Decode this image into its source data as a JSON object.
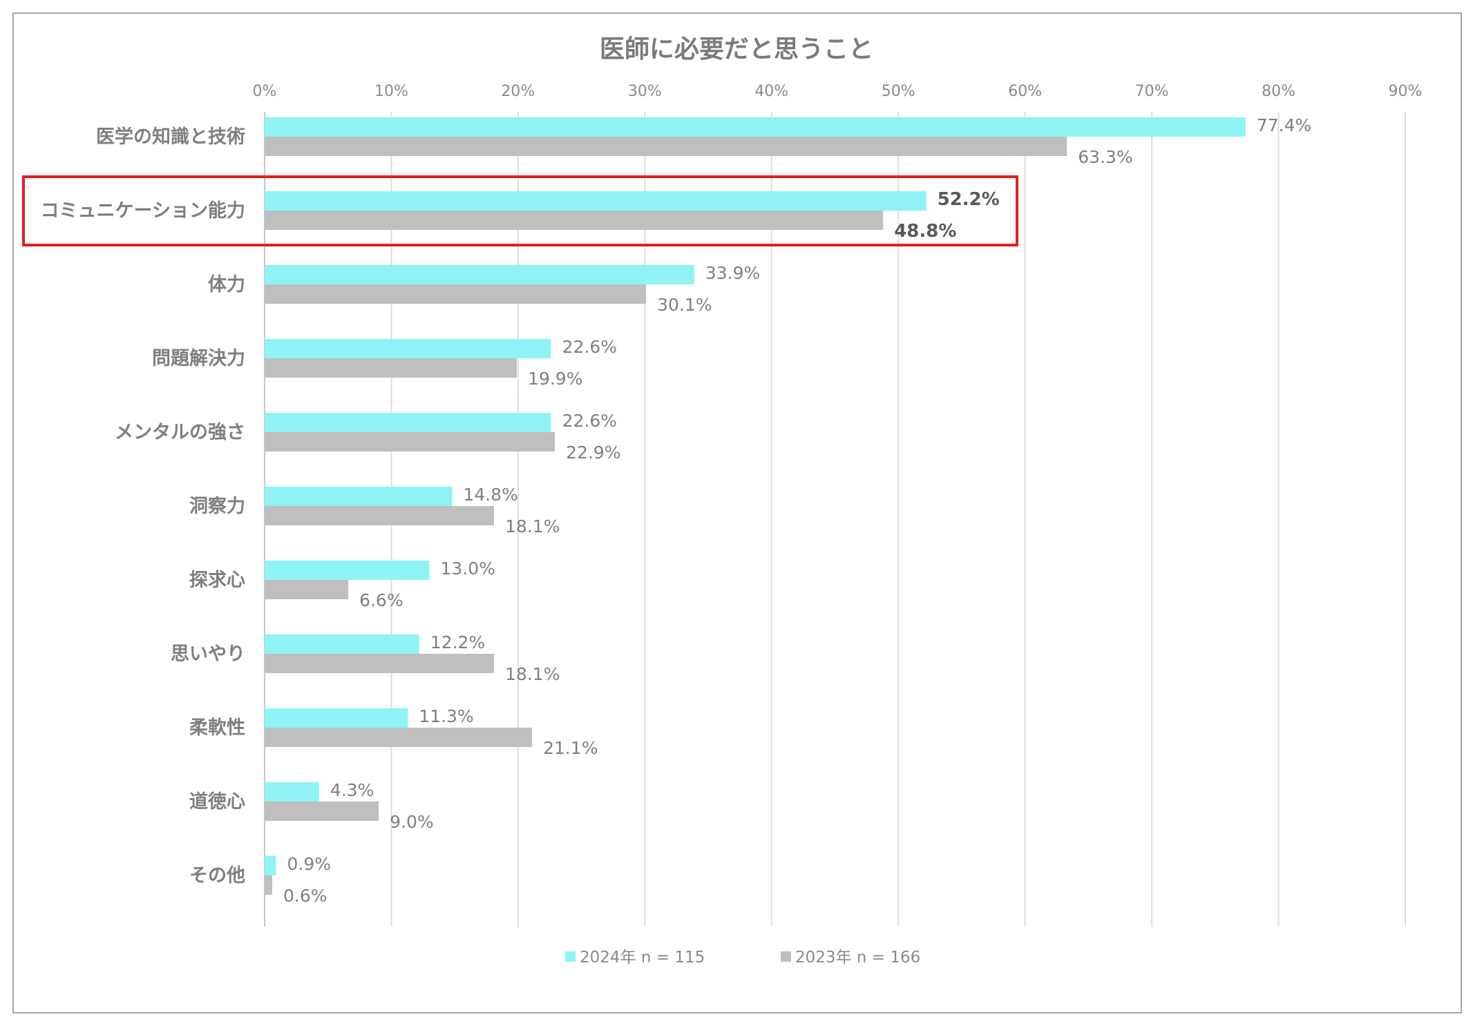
{
  "chart_data": {
    "type": "bar",
    "orientation": "horizontal",
    "title": "医師に必要だと思うこと",
    "xlabel": "",
    "ylabel": "",
    "xlim": [
      0,
      90
    ],
    "tick_labels": [
      "0%",
      "10%",
      "20%",
      "30%",
      "40%",
      "50%",
      "60%",
      "70%",
      "80%",
      "90%"
    ],
    "grid": true,
    "legend_position": "bottom",
    "categories": [
      "医学の知識と技術",
      "コミュニケーション能力",
      "体力",
      "問題解決力",
      "メンタルの強さ",
      "洞察力",
      "探求心",
      "思いやり",
      "柔軟性",
      "道徳心",
      "その他"
    ],
    "series": [
      {
        "name": "2024年 n = 115",
        "color": "#8ff3f5",
        "values": [
          77.4,
          52.2,
          33.9,
          22.6,
          22.6,
          14.8,
          13.0,
          12.2,
          11.3,
          4.3,
          0.9
        ],
        "labels": [
          "77.4%",
          "52.2%",
          "33.9%",
          "22.6%",
          "22.6%",
          "14.8%",
          "13.0%",
          "12.2%",
          "11.3%",
          "4.3%",
          "0.9%"
        ]
      },
      {
        "name": "2023年 n = 166",
        "color": "#bfbfbf",
        "values": [
          63.3,
          48.8,
          30.1,
          19.9,
          22.9,
          18.1,
          6.6,
          18.1,
          21.1,
          9.0,
          0.6
        ],
        "labels": [
          "63.3%",
          "48.8%",
          "30.1%",
          "19.9%",
          "22.9%",
          "18.1%",
          "6.6%",
          "18.1%",
          "21.1%",
          "9.0%",
          "0.6%"
        ]
      }
    ],
    "highlight": {
      "category": "コミュニケーション能力",
      "color": "#e02020"
    }
  }
}
